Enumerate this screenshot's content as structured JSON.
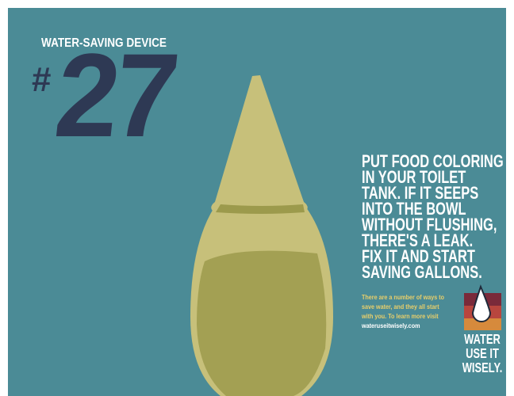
{
  "header": {
    "kicker": "WATER-SAVING DEVICE",
    "hash": "#",
    "number": "27"
  },
  "headline": [
    "PUT FOOD COLORING",
    "IN YOUR TOILET",
    "TANK. IF IT SEEPS",
    "INTO THE BOWL",
    "WITHOUT FLUSHING,",
    "THERE'S A LEAK.",
    "FIX IT AND START",
    "SAVING GALLONS."
  ],
  "body": [
    "There are a number of ways to",
    "save water, and they all start",
    "with you. To learn more visit"
  ],
  "url": "wateruseitwisely.com",
  "logo": [
    "WATER",
    "USE IT",
    "WISELY."
  ]
}
